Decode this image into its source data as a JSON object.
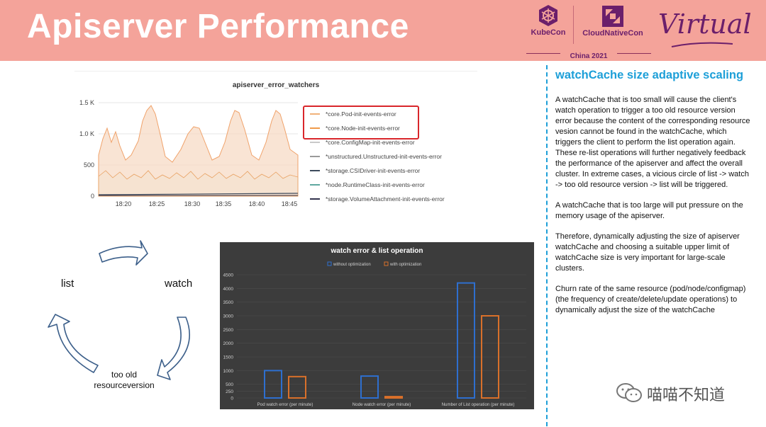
{
  "header": {
    "title": "Apiserver Performance",
    "kubecon_label": "KubeCon",
    "cloudnativecon_label": "CloudNativeCon",
    "china_label": "China 2021",
    "virtual_label": "Virtual",
    "bg_color": "#f4a39a",
    "brand_color": "#6b1f6b"
  },
  "grafana": {
    "title": "apiserver_error_watchers",
    "y_ticks": [
      "1.5 K",
      "1.0 K",
      "500",
      "0"
    ],
    "x_ticks": [
      "18:20",
      "18:25",
      "18:30",
      "18:35",
      "18:40",
      "18:45"
    ],
    "legend": [
      {
        "label": "*core.Pod-init-events-error",
        "color": "#f0b27a"
      },
      {
        "label": "*core.Node-init-events-error",
        "color": "#f09a4a"
      },
      {
        "label": "*core.ConfigMap-init-events-error",
        "color": "#c9c9c9"
      },
      {
        "label": "*unstructured.Unstructured-init-events-error",
        "color": "#9a9a9a"
      },
      {
        "label": "*storage.CSIDriver-init-events-error",
        "color": "#3d4a5c"
      },
      {
        "label": "*node.RuntimeClass-init-events-error",
        "color": "#5fa8a0"
      },
      {
        "label": "*storage.VolumeAttachment-init-events-error",
        "color": "#33334d"
      }
    ]
  },
  "cycle": {
    "list": "list",
    "watch": "watch",
    "too_old_line1": "too old",
    "too_old_line2": "resourceversion"
  },
  "chart_data": {
    "type": "bar",
    "title": "watch error & list operation",
    "categories": [
      "Pod watch error  (per minute)",
      "Node watch error  (per minute)",
      "Number of List operation  (per minute)"
    ],
    "series": [
      {
        "name": "without optimization",
        "color": "#2e6fcf",
        "values": [
          1000,
          800,
          4200
        ]
      },
      {
        "name": "with optimization",
        "color": "#d9702a",
        "values": [
          780,
          50,
          3000
        ]
      }
    ],
    "y_ticks": [
      0,
      250,
      500,
      1000,
      1500,
      2000,
      2500,
      3000,
      3500,
      4000,
      4500
    ],
    "ylim": [
      0,
      4500
    ],
    "xlabel": "",
    "ylabel": ""
  },
  "right": {
    "title": "watchCache size adaptive scaling",
    "paragraphs": [
      "A watchCache that is too small will cause the client's watch operation to trigger a too old resource version error because the content of the corresponding resource vesion cannot be found in the watchCache, which triggers the client to perform the list operation again. These re-list operations will further negatively feedback the performance of the apiserver and affect the overall cluster. In extreme cases, a vicious circle of list -> watch -> too old resource version -> list will be triggered.",
      "A watchCache that is too large will put pressure on the memory usage of the apiserver.",
      "Therefore, dynamically adjusting the size of apiserver watchCache and choosing a suitable upper limit of watchCache size is very important for large-scale clusters.",
      "Churn rate of the same resource (pod/node/configmap) (the frequency of create/delete/update operations) to dynamically adjust the size of the watchCache"
    ],
    "accent_color": "#1d9fd8"
  },
  "watermark": {
    "text": "喵喵不知道",
    "icon": "wechat-icon"
  }
}
